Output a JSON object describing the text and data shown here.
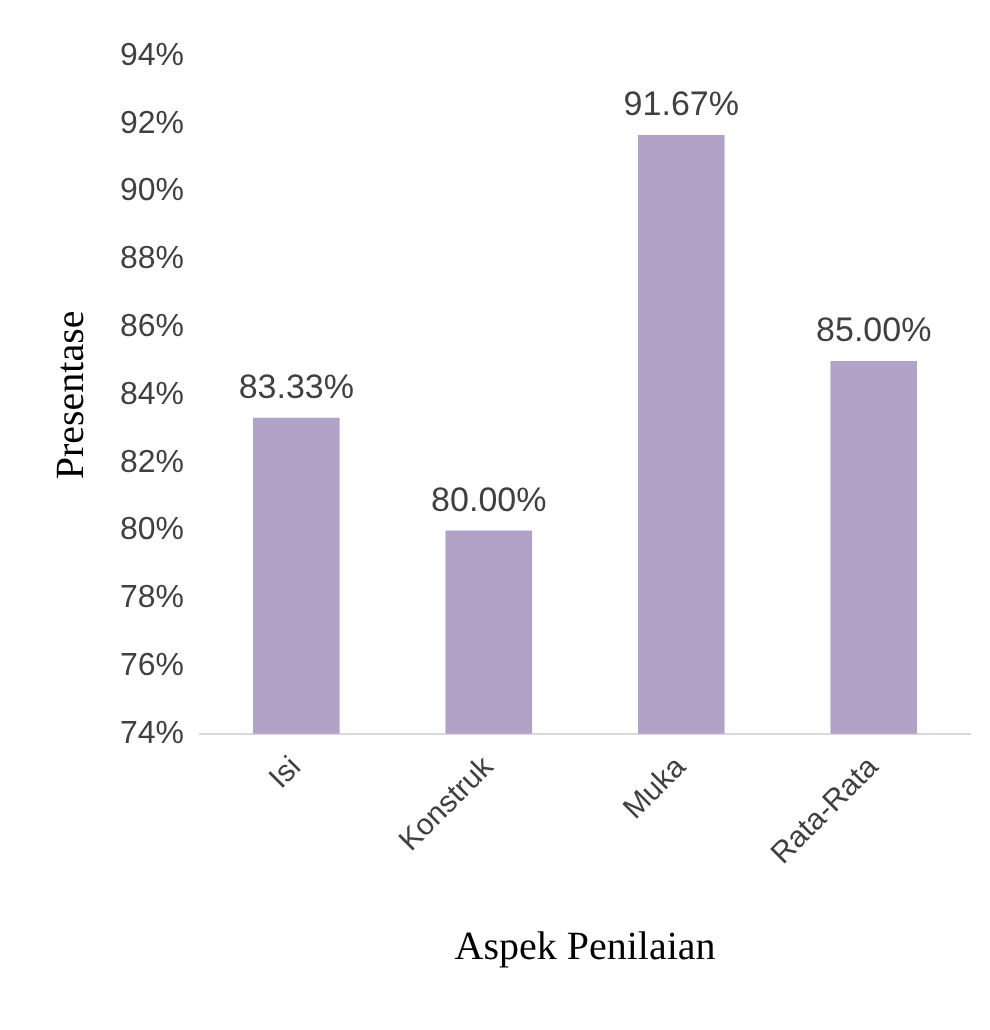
{
  "chart_data": {
    "type": "bar",
    "xlabel": "Aspek Penilaian",
    "ylabel": "Presentase",
    "categories": [
      "Isi",
      "Konstruk",
      "Muka",
      "Rata-Rata"
    ],
    "values": [
      83.33,
      80.0,
      91.67,
      85.0
    ],
    "color": "#b3a2c7",
    "value_labels": [
      "83.33%",
      "80.00%",
      "91.67%",
      "85.00%"
    ],
    "ylim": [
      74,
      94
    ],
    "yticks": [
      {
        "value": 74,
        "label": "74%"
      },
      {
        "value": 76,
        "label": "76%"
      },
      {
        "value": 78,
        "label": "78%"
      },
      {
        "value": 80,
        "label": "80%"
      },
      {
        "value": 82,
        "label": "82%"
      },
      {
        "value": 84,
        "label": "84%"
      },
      {
        "value": 86,
        "label": "86%"
      },
      {
        "value": 88,
        "label": "88%"
      },
      {
        "value": 90,
        "label": "90%"
      },
      {
        "value": 92,
        "label": "92%"
      },
      {
        "value": 94,
        "label": "94%"
      }
    ],
    "grid": false,
    "legend": false
  }
}
